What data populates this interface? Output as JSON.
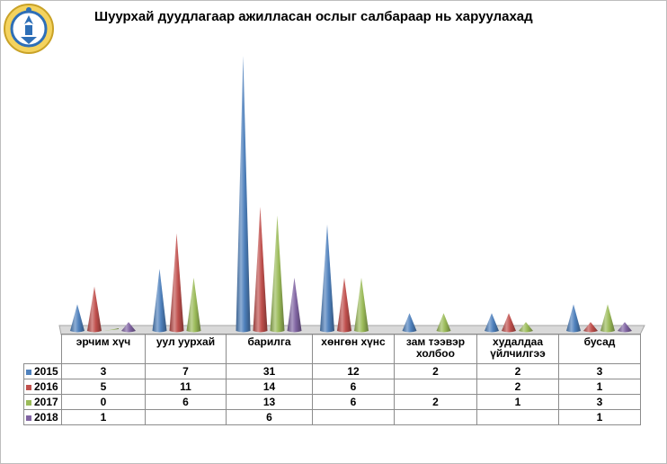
{
  "title": "Шуурхай дуудлагаар ажилласан ослыг салбараар нь харуулахад",
  "logo_icon": "soyombo-emblem-icon",
  "chart_data": {
    "type": "bar",
    "bar_shape": "cone",
    "title": "Шуурхай дуудлагаар ажилласан ослыг салбараар нь харуулахад",
    "xlabel": "",
    "ylabel": "",
    "ylim": [
      0,
      31
    ],
    "grid": false,
    "legend": "data-table",
    "categories": [
      "эрчим хүч",
      "уул уурхай",
      "барилга",
      "хөнгөн хүнс",
      "зам тээвэр холбоо",
      "худалдаа үйлчилгээ",
      "бусад"
    ],
    "series": [
      {
        "name": "2015",
        "color": "#4f81bd",
        "values": [
          3,
          7,
          31,
          12,
          2,
          2,
          3
        ]
      },
      {
        "name": "2016",
        "color": "#c0504d",
        "values": [
          5,
          11,
          14,
          6,
          null,
          2,
          1
        ]
      },
      {
        "name": "2017",
        "color": "#9bbb59",
        "values": [
          0,
          6,
          13,
          6,
          2,
          1,
          3
        ]
      },
      {
        "name": "2018",
        "color": "#8064a2",
        "values": [
          1,
          null,
          6,
          null,
          null,
          null,
          1
        ]
      }
    ]
  }
}
